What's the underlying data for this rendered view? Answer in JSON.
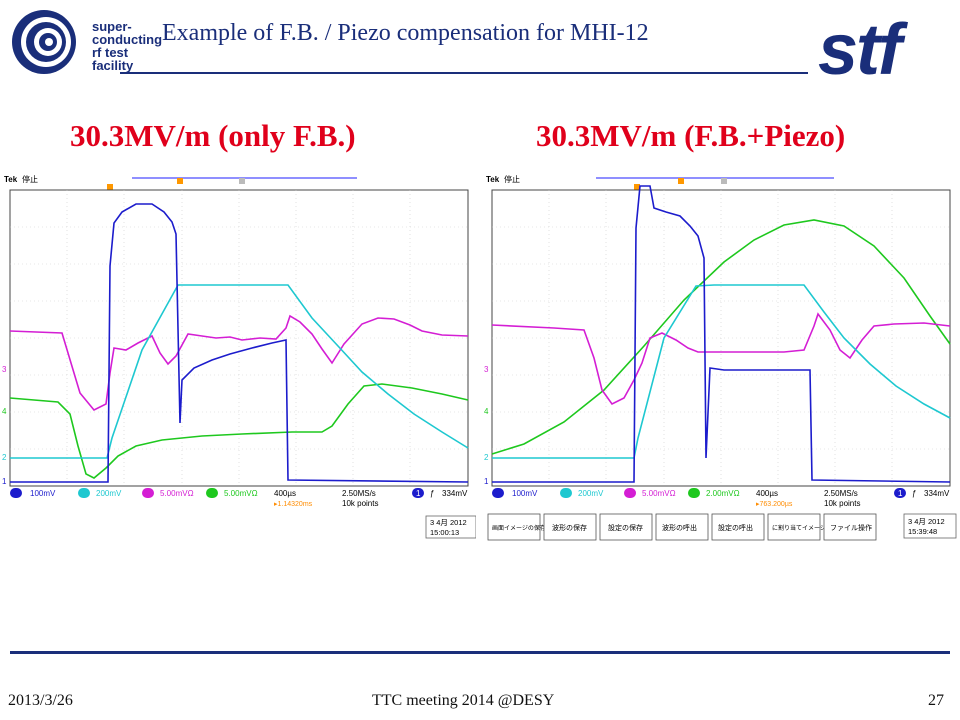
{
  "header": {
    "logo_lines": [
      "super-",
      "conducting",
      "rf test",
      "facility"
    ],
    "title": "Example of F.B. / Piezo compensation for MHI-12",
    "right_logo": "stf"
  },
  "subtitles": {
    "left": "30.3MV/m (only F.B.)",
    "right": "30.3MV/m (F.B.+Piezo)"
  },
  "colors": {
    "brand": "#1a2e7a",
    "subtitle": "#e0001b",
    "ch1": "#1c1ccc",
    "ch2": "#1ec8d0",
    "ch3": "#d41ed4",
    "ch4": "#1ec81e"
  },
  "scope_left": {
    "brand": "Tek",
    "status": "停止",
    "channel_markers": [
      "3",
      "4",
      "2",
      "1"
    ],
    "ch1_scale": "100mV",
    "ch2_scale": "200mV",
    "ch3_scale": "5.00mVΩ",
    "ch4_scale": "5.00mVΩ",
    "timebase": "400µs",
    "trigger_pos": "▸1.14320ms",
    "sample_rate": "2.50MS/s",
    "record_length": "10k points",
    "trigger_ch": "1",
    "trigger_level": "334mV",
    "date": "3 4月 2012",
    "time": "15:00:13"
  },
  "scope_right": {
    "brand": "Tek",
    "status": "停止",
    "channel_markers": [
      "3",
      "4",
      "2",
      "1"
    ],
    "ch1_scale": "100mV",
    "ch2_scale": "200mV",
    "ch3_scale": "5.00mVΩ",
    "ch4_scale": "2.00mVΩ",
    "timebase": "400µs",
    "trigger_pos": "▸763.200µs",
    "sample_rate": "2.50MS/s",
    "record_length": "10k points",
    "trigger_ch": "1",
    "trigger_level": "334mV",
    "date": "3 4月 2012",
    "time": "15:39:48",
    "menu": [
      "画面イメージの保存",
      "波形の保存",
      "設定の保存",
      "波形の呼出",
      "設定の呼出",
      "に割り当てイメージ",
      "ファイル操作"
    ]
  },
  "footer": {
    "date": "2013/3/26",
    "center": "TTC meeting 2014 @DESY",
    "page": "27"
  }
}
